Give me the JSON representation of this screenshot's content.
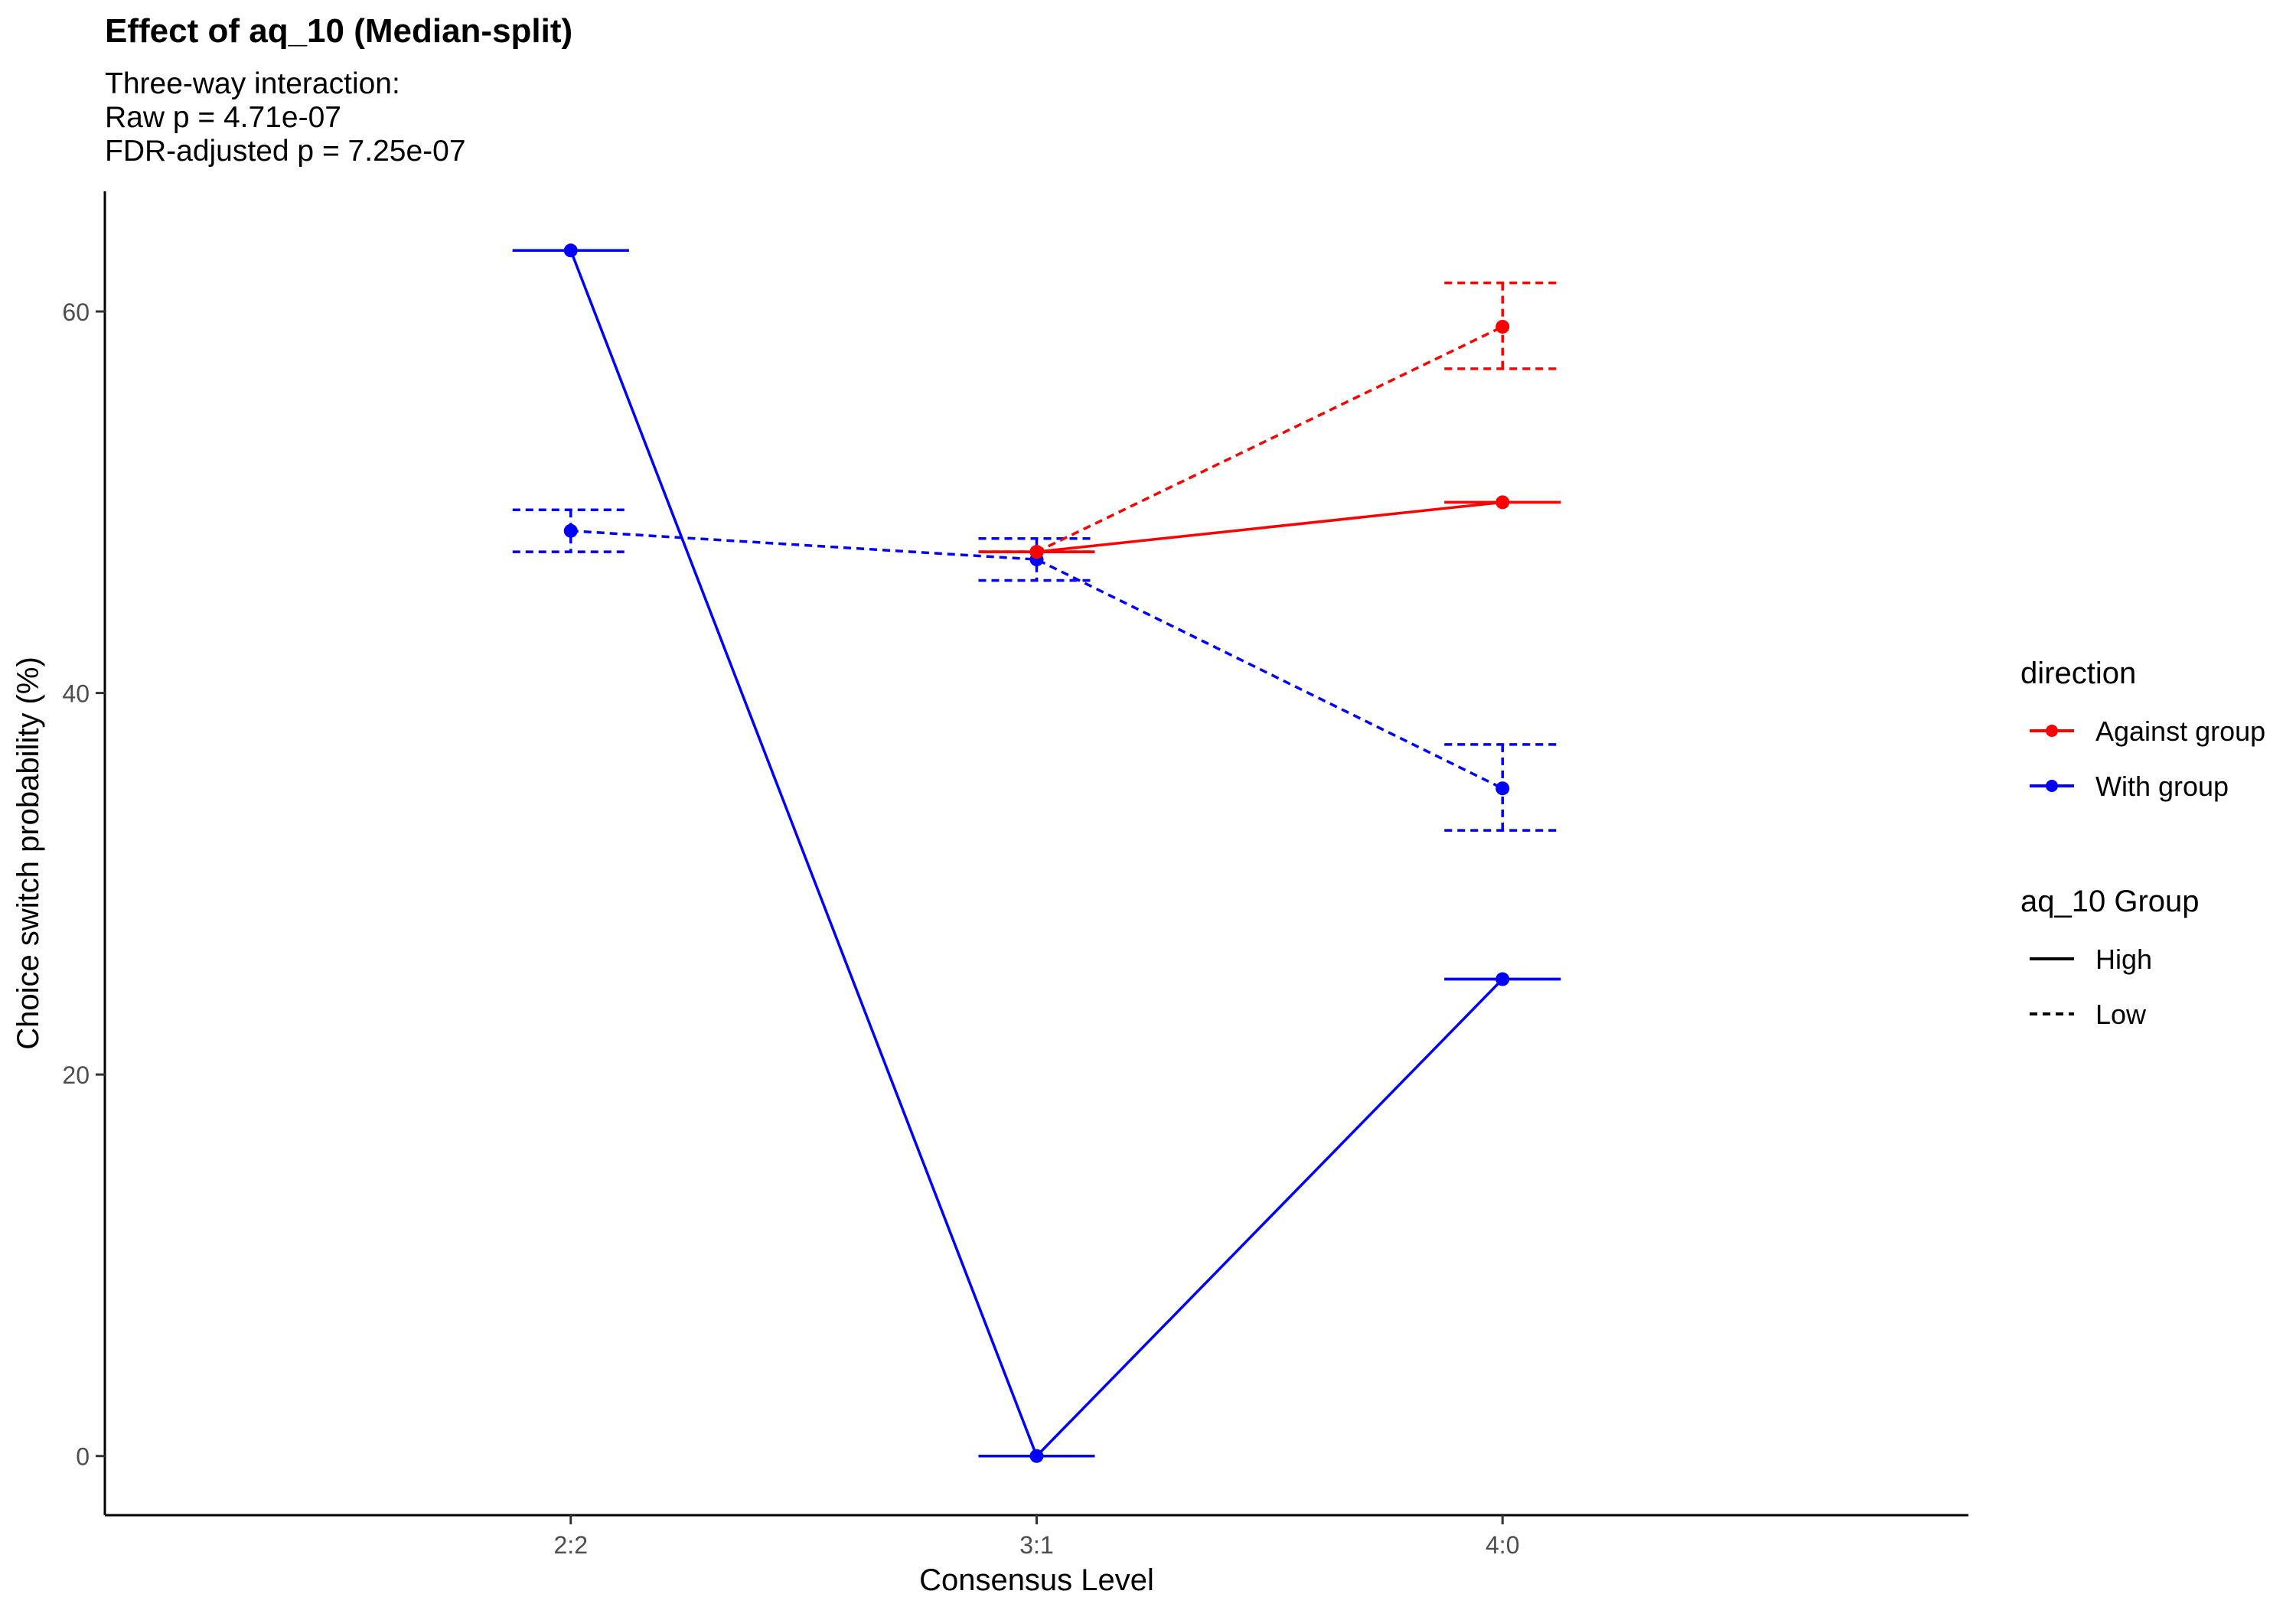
{
  "chart_data": {
    "type": "line",
    "title": "Effect of aq_10 (Median-split)",
    "subtitle_lines": [
      "Three-way interaction:",
      "Raw p = 4.71e-07",
      "FDR-adjusted p = 7.25e-07"
    ],
    "xlabel": "Consensus Level",
    "ylabel": "Choice switch probability (%)",
    "categories": [
      "2:2",
      "3:1",
      "4:0"
    ],
    "yticks": [
      0,
      20,
      40,
      60
    ],
    "ylim": [
      -3.1,
      66.3
    ],
    "grid": false,
    "legend_placement": "right",
    "legend": {
      "color_title": "direction",
      "color_items": [
        {
          "label": "Against group",
          "color": "#ff0000"
        },
        {
          "label": "With group",
          "color": "#0000ff"
        }
      ],
      "linetype_title": "aq_10 Group",
      "linetype_items": [
        {
          "label": "High",
          "dash": "solid"
        },
        {
          "label": "Low",
          "dash": "dashed"
        }
      ]
    },
    "series": [
      {
        "direction": "With group",
        "group": "High",
        "color": "#0000ff",
        "dash": "solid",
        "x": [
          "2:2",
          "3:1",
          "4:0"
        ],
        "values": [
          63.2,
          0,
          25
        ],
        "ci_low": [
          63.2,
          0,
          25
        ],
        "ci_high": [
          63.2,
          0,
          25
        ]
      },
      {
        "direction": "With group",
        "group": "Low",
        "color": "#0000ff",
        "dash": "dashed",
        "x": [
          "2:2",
          "3:1",
          "4:0"
        ],
        "values": [
          48.5,
          47.0,
          35.0
        ],
        "ci_low": [
          47.4,
          45.9,
          32.8
        ],
        "ci_high": [
          49.6,
          48.1,
          37.3
        ]
      },
      {
        "direction": "Against group",
        "group": "High",
        "color": "#ff0000",
        "dash": "solid",
        "x": [
          "3:1",
          "4:0"
        ],
        "values": [
          47.4,
          50.0
        ],
        "ci_low": [
          47.4,
          50.0
        ],
        "ci_high": [
          47.4,
          50.0
        ]
      },
      {
        "direction": "Against group",
        "group": "Low",
        "color": "#ff0000",
        "dash": "dashed",
        "x": [
          "3:1",
          "4:0"
        ],
        "values": [
          47.4,
          59.2
        ],
        "ci_low": [
          47.4,
          57.0
        ],
        "ci_high": [
          47.4,
          61.5
        ]
      }
    ]
  }
}
